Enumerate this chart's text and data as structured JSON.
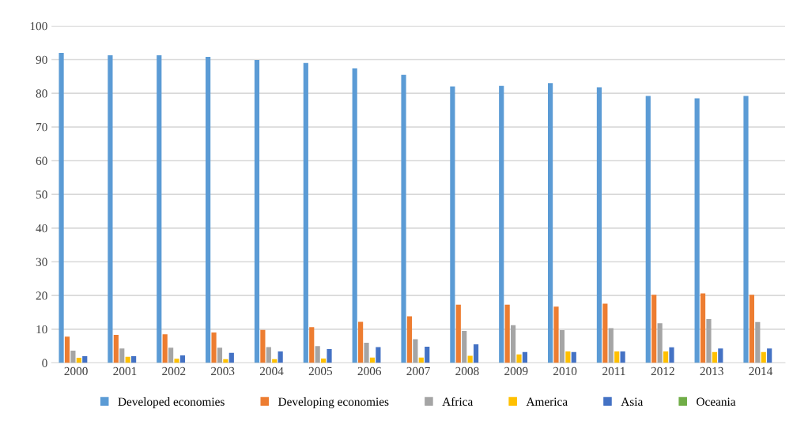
{
  "chart_data": {
    "type": "bar",
    "categories": [
      "2000",
      "2001",
      "2002",
      "2003",
      "2004",
      "2005",
      "2006",
      "2007",
      "2008",
      "2009",
      "2010",
      "2011",
      "2012",
      "2013",
      "2014"
    ],
    "series": [
      {
        "name": "Developed economies",
        "color": "#5b9bd5",
        "values": [
          92,
          91.3,
          91.3,
          90.8,
          89.9,
          89,
          87.4,
          85.5,
          82,
          82.2,
          83,
          81.8,
          79.2,
          78.5,
          79.2
        ]
      },
      {
        "name": "Developing economies",
        "color": "#ed7d31",
        "values": [
          7.8,
          8.3,
          8.5,
          9,
          9.8,
          10.6,
          12.2,
          13.8,
          17.3,
          17.3,
          16.7,
          17.6,
          20.2,
          20.6,
          20.2
        ]
      },
      {
        "name": "Africa",
        "color": "#a5a5a5",
        "values": [
          3.6,
          4.3,
          4.5,
          4.5,
          4.7,
          5,
          6,
          7,
          9.5,
          11.2,
          9.7,
          10.3,
          11.8,
          13,
          12.1
        ]
      },
      {
        "name": "America",
        "color": "#ffc000",
        "values": [
          1.5,
          1.8,
          1.2,
          1.1,
          1.1,
          1.3,
          1.6,
          1.6,
          2.1,
          2.5,
          3.4,
          3.4,
          3.4,
          3.2,
          3.2
        ]
      },
      {
        "name": "Asia",
        "color": "#4472c4",
        "values": [
          2,
          2,
          2.2,
          3,
          3.4,
          4.1,
          4.7,
          4.8,
          5.5,
          3.2,
          3.2,
          3.4,
          4.6,
          4.3,
          4.3
        ]
      },
      {
        "name": "Oceania",
        "color": "#70ad47",
        "values": [
          0,
          0,
          0,
          0,
          0,
          0,
          0,
          0,
          0,
          0,
          0,
          0,
          0,
          0,
          0
        ]
      }
    ],
    "ylim": [
      0,
      100
    ],
    "yticks": [
      0,
      10,
      20,
      30,
      40,
      50,
      60,
      70,
      80,
      90,
      100
    ],
    "grid": "y",
    "legend": "bottom"
  }
}
